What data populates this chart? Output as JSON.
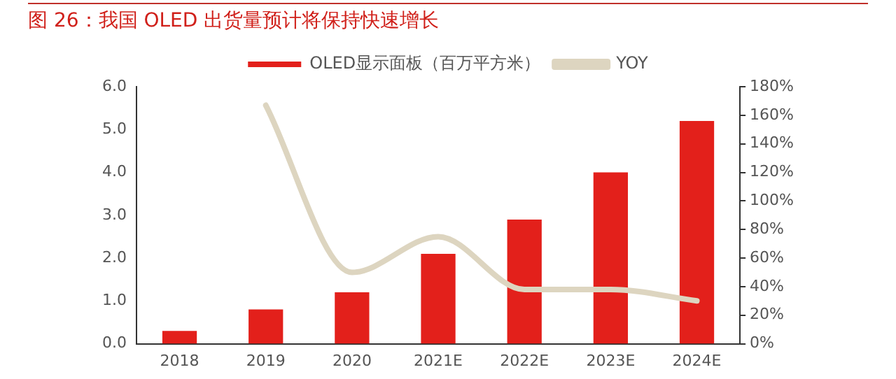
{
  "chart_data": {
    "type": "bar",
    "title": "图 26：我国 OLED 出货量预计将保持快速增长",
    "categories": [
      "2018",
      "2019",
      "2020",
      "2021E",
      "2022E",
      "2023E",
      "2024E"
    ],
    "series": [
      {
        "name": "OLED显示面板（百万平方米）",
        "color": "#e3201b",
        "values": [
          0.3,
          0.8,
          1.2,
          2.1,
          2.9,
          4.0,
          5.2
        ]
      },
      {
        "name": "YOY",
        "type": "line",
        "axis": "y2",
        "color": "#ddd5c0",
        "values": [
          null,
          167,
          50,
          75,
          38,
          38,
          30
        ]
      }
    ],
    "ylim": [
      0,
      6
    ],
    "yticks": [
      {
        "value": 0,
        "label": "0.0"
      },
      {
        "value": 1,
        "label": "1.0"
      },
      {
        "value": 2,
        "label": "2.0"
      },
      {
        "value": 3,
        "label": "3.0"
      },
      {
        "value": 4,
        "label": "4.0"
      },
      {
        "value": 5,
        "label": "5.0"
      },
      {
        "value": 6,
        "label": "6.0"
      }
    ],
    "y2lim": [
      0,
      180
    ],
    "y2ticks": [
      {
        "value": 0,
        "label": "0%"
      },
      {
        "value": 20,
        "label": "20%"
      },
      {
        "value": 40,
        "label": "40%"
      },
      {
        "value": 60,
        "label": "60%"
      },
      {
        "value": 80,
        "label": "80%"
      },
      {
        "value": 100,
        "label": "100%"
      },
      {
        "value": 120,
        "label": "120%"
      },
      {
        "value": 140,
        "label": "140%"
      },
      {
        "value": 160,
        "label": "160%"
      },
      {
        "value": 180,
        "label": "180%"
      }
    ],
    "grid": false,
    "legend": "top",
    "marker": "none"
  }
}
